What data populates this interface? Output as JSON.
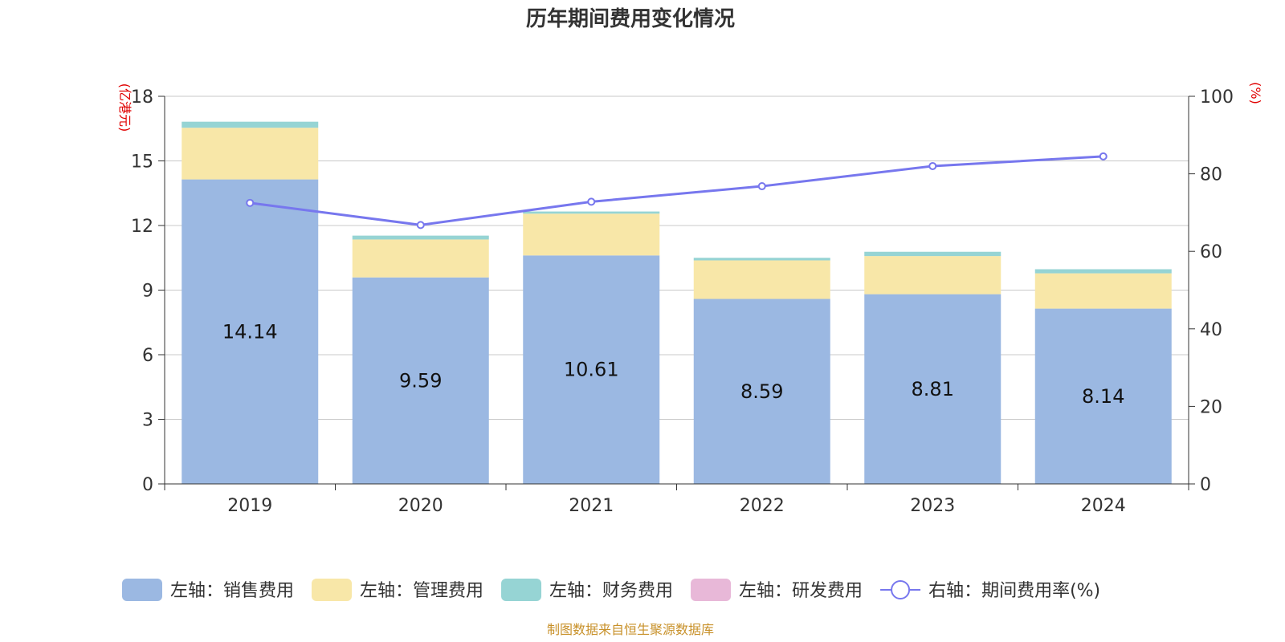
{
  "chart_data": {
    "type": "bar",
    "title": "历年期间费用变化情况",
    "categories": [
      "2019",
      "2020",
      "2021",
      "2022",
      "2023",
      "2024"
    ],
    "y_left": {
      "unit": "(亿港元)",
      "ylim": [
        0,
        18
      ],
      "ticks": [
        0,
        3,
        6,
        9,
        12,
        15,
        18
      ]
    },
    "y_right": {
      "unit": "(%)",
      "ylim": [
        0,
        100
      ],
      "ticks": [
        0,
        20,
        40,
        60,
        80,
        100
      ]
    },
    "stacked": true,
    "series": [
      {
        "name": "左轴：销售费用",
        "axis": "left",
        "type": "bar",
        "color": "#9bb8e2",
        "values": [
          14.14,
          9.59,
          10.61,
          8.59,
          8.81,
          8.14
        ],
        "show_labels": true
      },
      {
        "name": "左轴：管理费用",
        "axis": "left",
        "type": "bar",
        "color": "#f8e7a8",
        "values": [
          2.4,
          1.76,
          1.94,
          1.79,
          1.77,
          1.64
        ]
      },
      {
        "name": "左轴：财务费用",
        "axis": "left",
        "type": "bar",
        "color": "#96d4d4",
        "values": [
          0.28,
          0.18,
          0.1,
          0.12,
          0.2,
          0.19
        ]
      },
      {
        "name": "左轴：研发费用",
        "axis": "left",
        "type": "bar",
        "color": "#e8b8d8",
        "values": [
          0,
          0,
          0,
          0,
          0,
          0
        ]
      },
      {
        "name": "右轴：期间费用率(%)",
        "axis": "right",
        "type": "line",
        "color": "#7777ee",
        "values": [
          72.5,
          66.8,
          72.8,
          76.8,
          82.0,
          84.5
        ]
      }
    ],
    "grid": true,
    "legend_position": "bottom"
  },
  "footer": {
    "source": "制图数据来自恒生聚源数据库"
  }
}
